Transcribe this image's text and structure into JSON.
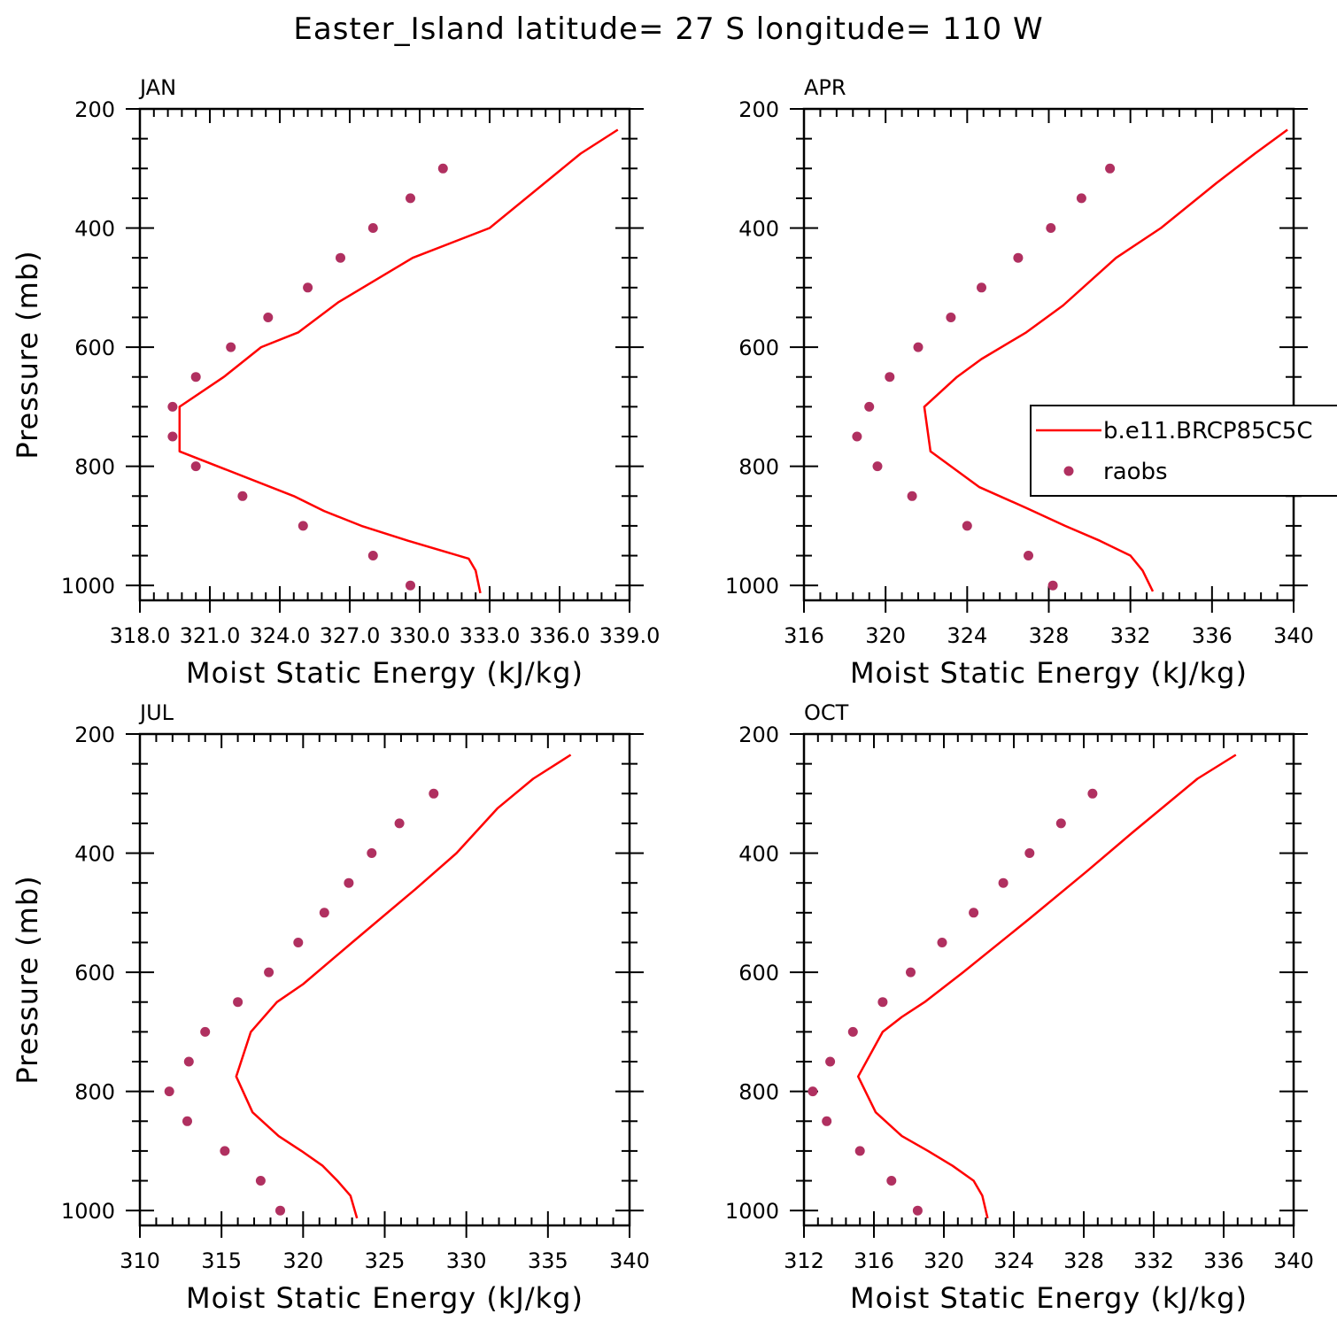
{
  "title": "Easter_Island  latitude= 27 S longitude= 110 W",
  "colors": {
    "model_line": "#ff0000",
    "raobs_marker": "#b03060",
    "axes": "#000000"
  },
  "legend": {
    "entries": [
      {
        "label": "b.e11.BRCP85C5C",
        "style": "line"
      },
      {
        "label": "raobs",
        "style": "marker"
      }
    ],
    "placement": "right of APR panel, clipped at figure edge"
  },
  "chart_data": [
    {
      "type": "line",
      "panel": "JAN",
      "xlabel": "Moist Static Energy (kJ/kg)",
      "ylabel": "Pressure (mb)",
      "xlim": [
        318.0,
        339.0
      ],
      "xticks": [
        "318.0",
        "321.0",
        "324.0",
        "327.0",
        "330.0",
        "333.0",
        "336.0",
        "339.0"
      ],
      "xtick_values": [
        318,
        321,
        324,
        327,
        330,
        333,
        336,
        339
      ],
      "ylim": [
        1025,
        200
      ],
      "yticks": [
        200,
        400,
        600,
        800,
        1000
      ],
      "series": [
        {
          "name": "b.e11.BRCP85C5C",
          "style": "line",
          "x": [
            332.6,
            332.4,
            332.1,
            329.5,
            327.5,
            325.9,
            324.6,
            319.7,
            319.7,
            321.6,
            323.2,
            324.8,
            326.5,
            329.7,
            333.0,
            336.9,
            338.5
          ],
          "y": [
            1013,
            975,
            955,
            925,
            900,
            875,
            850,
            775,
            700,
            650,
            600,
            575,
            525,
            450,
            400,
            275,
            235
          ]
        },
        {
          "name": "raobs",
          "style": "marker",
          "x": [
            329.6,
            328.0,
            325.0,
            322.4,
            320.4,
            319.4,
            319.4,
            320.4,
            321.9,
            323.5,
            325.2,
            326.6,
            328.0,
            329.6,
            331.0
          ],
          "y": [
            1000,
            950,
            900,
            850,
            800,
            750,
            700,
            650,
            600,
            550,
            500,
            450,
            400,
            350,
            300
          ]
        }
      ]
    },
    {
      "type": "line",
      "panel": "APR",
      "xlabel": "Moist Static Energy (kJ/kg)",
      "ylabel": "",
      "xlim": [
        316,
        340
      ],
      "xticks": [
        "316",
        "320",
        "324",
        "328",
        "332",
        "336",
        "340"
      ],
      "xtick_values": [
        316,
        320,
        324,
        328,
        332,
        336,
        340
      ],
      "ylim": [
        1025,
        200
      ],
      "yticks": [
        200,
        400,
        600,
        800,
        1000
      ],
      "series": [
        {
          "name": "b.e11.BRCP85C5C",
          "style": "line",
          "x": [
            333.1,
            332.6,
            332.0,
            330.5,
            328.8,
            326.9,
            324.6,
            322.2,
            321.9,
            323.5,
            324.7,
            326.9,
            328.7,
            331.3,
            333.5,
            336.2,
            338.1,
            339.7
          ],
          "y": [
            1010,
            975,
            950,
            925,
            900,
            870,
            835,
            775,
            700,
            650,
            620,
            575,
            530,
            450,
            400,
            325,
            275,
            235
          ]
        },
        {
          "name": "raobs",
          "style": "marker",
          "x": [
            328.2,
            327.0,
            324.0,
            321.3,
            319.6,
            318.6,
            319.2,
            320.2,
            321.6,
            323.2,
            324.7,
            326.5,
            328.1,
            329.6,
            331.0
          ],
          "y": [
            1000,
            950,
            900,
            850,
            800,
            750,
            700,
            650,
            600,
            550,
            500,
            450,
            400,
            350,
            300
          ]
        }
      ]
    },
    {
      "type": "line",
      "panel": "JUL",
      "xlabel": "Moist Static Energy (kJ/kg)",
      "ylabel": "Pressure (mb)",
      "xlim": [
        310,
        340
      ],
      "xticks": [
        "310",
        "315",
        "320",
        "325",
        "330",
        "335",
        "340"
      ],
      "xtick_values": [
        310,
        315,
        320,
        325,
        330,
        335,
        340
      ],
      "ylim": [
        1025,
        200
      ],
      "yticks": [
        200,
        400,
        600,
        800,
        1000
      ],
      "series": [
        {
          "name": "b.e11.BRCP85C5C",
          "style": "line",
          "x": [
            323.3,
            322.9,
            322.1,
            321.2,
            319.9,
            318.5,
            316.9,
            315.9,
            316.8,
            318.4,
            320.0,
            323.0,
            326.9,
            329.4,
            331.9,
            334.1,
            336.4
          ],
          "y": [
            1013,
            975,
            950,
            925,
            900,
            875,
            835,
            775,
            700,
            650,
            620,
            550,
            460,
            400,
            325,
            275,
            235
          ]
        },
        {
          "name": "raobs",
          "style": "marker",
          "x": [
            318.6,
            317.4,
            315.2,
            312.9,
            311.8,
            313.0,
            314.0,
            316.0,
            317.9,
            319.7,
            321.3,
            322.8,
            324.2,
            325.9,
            328.0
          ],
          "y": [
            1000,
            950,
            900,
            850,
            800,
            750,
            700,
            650,
            600,
            550,
            500,
            450,
            400,
            350,
            300
          ]
        }
      ]
    },
    {
      "type": "line",
      "panel": "OCT",
      "xlabel": "Moist Static Energy (kJ/kg)",
      "ylabel": "",
      "xlim": [
        312,
        340
      ],
      "xticks": [
        "312",
        "316",
        "320",
        "324",
        "328",
        "332",
        "336",
        "340"
      ],
      "xtick_values": [
        312,
        316,
        320,
        324,
        328,
        332,
        336,
        340
      ],
      "ylim": [
        1025,
        200
      ],
      "yticks": [
        200,
        400,
        600,
        800,
        1000
      ],
      "series": [
        {
          "name": "b.e11.BRCP85C5C",
          "style": "line",
          "x": [
            322.5,
            322.2,
            321.7,
            320.5,
            319.1,
            317.6,
            316.1,
            315.1,
            316.5,
            317.6,
            318.9,
            321.1,
            324.9,
            328.2,
            330.8,
            334.5,
            336.7
          ],
          "y": [
            1013,
            975,
            950,
            925,
            900,
            875,
            835,
            775,
            700,
            675,
            650,
            600,
            510,
            430,
            365,
            275,
            235
          ]
        },
        {
          "name": "raobs",
          "style": "marker",
          "x": [
            318.5,
            317.0,
            315.2,
            313.3,
            312.5,
            313.5,
            314.8,
            316.5,
            318.1,
            319.9,
            321.7,
            323.4,
            324.9,
            326.7,
            328.5
          ],
          "y": [
            1000,
            950,
            900,
            850,
            800,
            750,
            700,
            650,
            600,
            550,
            500,
            450,
            400,
            350,
            300
          ]
        }
      ]
    }
  ]
}
